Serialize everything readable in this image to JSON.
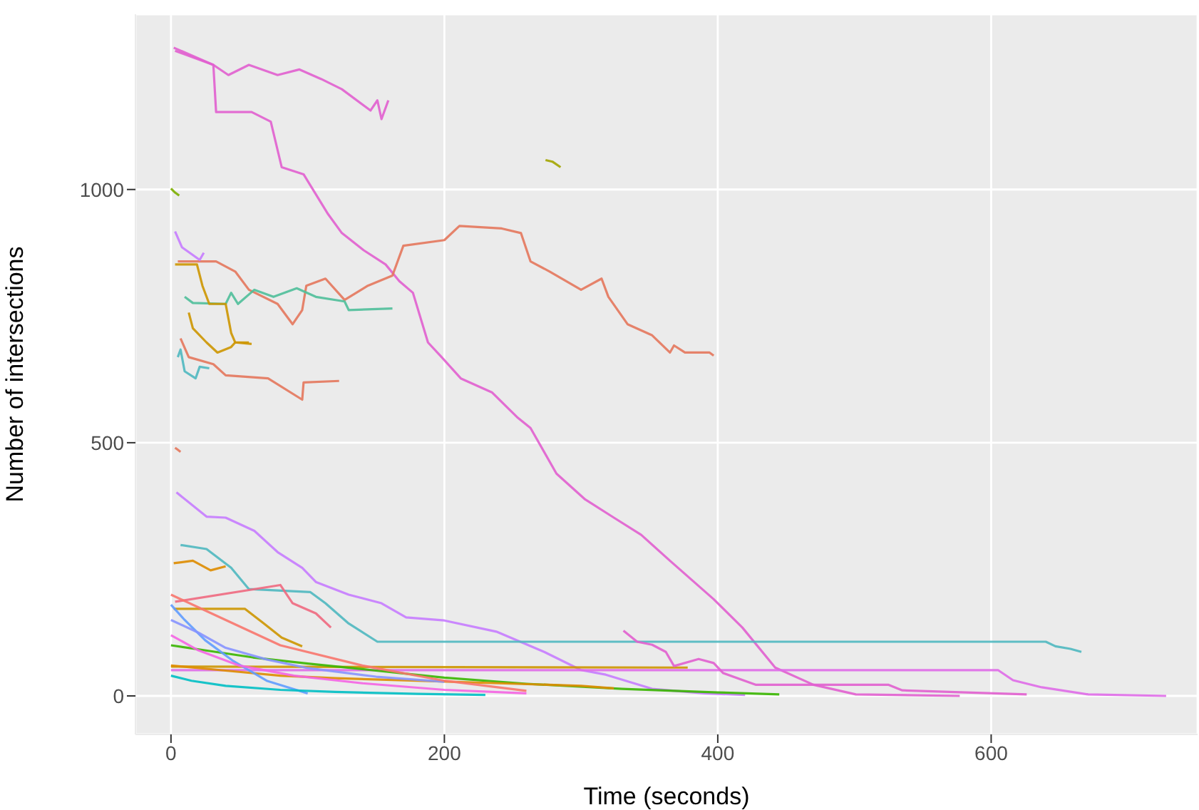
{
  "chart_data": {
    "type": "line",
    "xlabel": "Time (seconds)",
    "ylabel": "Number of intersections",
    "xlim": [
      -26,
      751
    ],
    "ylim": [
      -76,
      1346
    ],
    "xticks": [
      0,
      200,
      400,
      600
    ],
    "yticks": [
      0,
      500,
      1000
    ],
    "grid": true,
    "marker": "none",
    "line_style": "solid",
    "series": [
      {
        "color": "#e15fcf",
        "x": [
          3,
          31,
          42,
          57,
          78,
          94,
          110,
          125,
          146,
          151,
          154,
          159
        ],
        "values": [
          1274,
          1246,
          1226,
          1246,
          1226,
          1237,
          1218,
          1198,
          1156,
          1176,
          1139,
          1176
        ]
      },
      {
        "color": "#e15fcf",
        "x": [
          2,
          31,
          33,
          59,
          73,
          81,
          97,
          115,
          125,
          141,
          157,
          167,
          177,
          188,
          198,
          212,
          235,
          253,
          263,
          282,
          303,
          324,
          344,
          365,
          397,
          418,
          442,
          470,
          501,
          577
        ],
        "values": [
          1280,
          1246,
          1153,
          1153,
          1134,
          1044,
          1030,
          951,
          914,
          880,
          852,
          819,
          796,
          698,
          669,
          627,
          599,
          551,
          529,
          439,
          388,
          352,
          318,
          267,
          191,
          135,
          56,
          22,
          3,
          0
        ]
      },
      {
        "color": "#e4775c",
        "x": [
          5,
          33,
          47,
          57,
          78,
          89,
          96,
          99,
          113,
          127,
          144,
          162,
          170,
          200,
          211,
          242,
          256,
          263,
          277,
          300,
          315,
          320,
          334,
          352,
          365,
          368,
          376,
          394,
          397
        ],
        "values": [
          858,
          858,
          838,
          802,
          774,
          734,
          762,
          810,
          824,
          782,
          810,
          830,
          889,
          900,
          928,
          923,
          914,
          858,
          838,
          802,
          824,
          788,
          734,
          712,
          678,
          692,
          678,
          678,
          672
        ]
      },
      {
        "color": "#4fbf9a",
        "x": [
          10,
          16,
          40,
          44,
          49,
          61,
          75,
          92,
          106,
          127,
          130,
          162
        ],
        "values": [
          788,
          776,
          774,
          796,
          774,
          802,
          788,
          805,
          788,
          779,
          762,
          765
        ]
      },
      {
        "color": "#cd9600",
        "x": [
          3,
          19,
          23,
          28,
          40,
          44,
          47,
          59
        ],
        "values": [
          852,
          852,
          810,
          774,
          774,
          717,
          698,
          695
        ]
      },
      {
        "color": "#cd9600",
        "x": [
          13,
          16,
          26,
          34,
          44,
          47,
          57
        ],
        "values": [
          757,
          726,
          698,
          678,
          689,
          698,
          698
        ]
      },
      {
        "color": "#e4775c",
        "x": [
          7,
          13,
          31,
          40,
          71,
          96,
          97,
          123
        ],
        "values": [
          706,
          669,
          655,
          633,
          627,
          585,
          619,
          622
        ]
      },
      {
        "color": "#4fb8c0",
        "x": [
          5,
          7,
          10,
          18,
          21,
          28
        ],
        "values": [
          669,
          684,
          641,
          627,
          650,
          647
        ]
      },
      {
        "color": "#c77cff",
        "x": [
          3,
          8,
          21,
          24
        ],
        "values": [
          917,
          886,
          861,
          875
        ]
      },
      {
        "color": "#7cae00",
        "x": [
          0,
          3,
          6
        ],
        "values": [
          1002,
          994,
          988
        ]
      },
      {
        "color": "#a3a500",
        "x": [
          274,
          279,
          285
        ],
        "values": [
          1058,
          1055,
          1044
        ]
      },
      {
        "color": "#e4775c",
        "x": [
          3,
          5,
          7
        ],
        "values": [
          490,
          486,
          482
        ]
      },
      {
        "color": "#c77cff",
        "x": [
          4,
          26,
          40,
          61,
          78,
          96,
          106,
          130,
          154,
          172,
          200,
          238,
          273,
          300,
          318,
          352,
          390,
          420
        ],
        "values": [
          402,
          354,
          352,
          326,
          284,
          253,
          225,
          200,
          183,
          155,
          149,
          127,
          87,
          51,
          42,
          14,
          5,
          2
        ]
      },
      {
        "color": "#4fb8c0",
        "x": [
          7,
          26,
          44,
          57,
          102,
          113,
          130,
          151,
          640,
          647,
          658,
          666
        ],
        "values": [
          298,
          290,
          253,
          211,
          205,
          183,
          143,
          107,
          107,
          98,
          93,
          87
        ]
      },
      {
        "color": "#df6be8",
        "x": [
          0,
          605,
          616,
          637,
          671,
          728
        ],
        "values": [
          51,
          51,
          31,
          17,
          3,
          0
        ]
      },
      {
        "color": "#cd9600",
        "x": [
          0,
          378
        ],
        "values": [
          58,
          56
        ]
      },
      {
        "color": "#e15fcf",
        "x": [
          331,
          341,
          352,
          362,
          368,
          386,
          397,
          404,
          428,
          525,
          535,
          626
        ],
        "values": [
          129,
          107,
          101,
          87,
          59,
          73,
          65,
          45,
          22,
          22,
          11,
          3
        ]
      },
      {
        "color": "#f0697f",
        "x": [
          3,
          80,
          89,
          106,
          117
        ],
        "values": [
          186,
          219,
          183,
          163,
          135
        ]
      },
      {
        "color": "#cd9600",
        "x": [
          2,
          54,
          68,
          81,
          96
        ],
        "values": [
          172,
          172,
          143,
          115,
          98
        ]
      },
      {
        "color": "#de8c00",
        "x": [
          2,
          16,
          29,
          40
        ],
        "values": [
          262,
          267,
          248,
          256
        ]
      },
      {
        "color": "#39b600",
        "x": [
          0,
          30,
          60,
          100,
          150,
          200,
          260,
          330,
          400,
          445
        ],
        "values": [
          100,
          88,
          76,
          64,
          50,
          36,
          24,
          14,
          7,
          3
        ]
      },
      {
        "color": "#de8c00",
        "x": [
          0,
          40,
          80,
          120,
          180,
          240,
          300,
          324
        ],
        "values": [
          60,
          50,
          40,
          35,
          30,
          25,
          20,
          15
        ]
      },
      {
        "color": "#619cff",
        "x": [
          0,
          10,
          25,
          45,
          70,
          100
        ],
        "values": [
          180,
          150,
          110,
          70,
          30,
          5
        ]
      },
      {
        "color": "#f564e3",
        "x": [
          0,
          20,
          50,
          90,
          140,
          200,
          260
        ],
        "values": [
          120,
          90,
          60,
          40,
          25,
          12,
          5
        ]
      },
      {
        "color": "#00bfc4",
        "x": [
          0,
          15,
          40,
          80,
          120,
          180,
          230
        ],
        "values": [
          40,
          30,
          20,
          12,
          8,
          4,
          2
        ]
      },
      {
        "color": "#8794ff",
        "x": [
          0,
          20,
          40,
          70,
          100,
          150,
          200
        ],
        "values": [
          150,
          125,
          95,
          72,
          55,
          38,
          28
        ]
      },
      {
        "color": "#f8766d",
        "x": [
          0,
          40,
          80,
          140,
          200,
          260
        ],
        "values": [
          200,
          150,
          100,
          60,
          30,
          10
        ]
      }
    ]
  }
}
